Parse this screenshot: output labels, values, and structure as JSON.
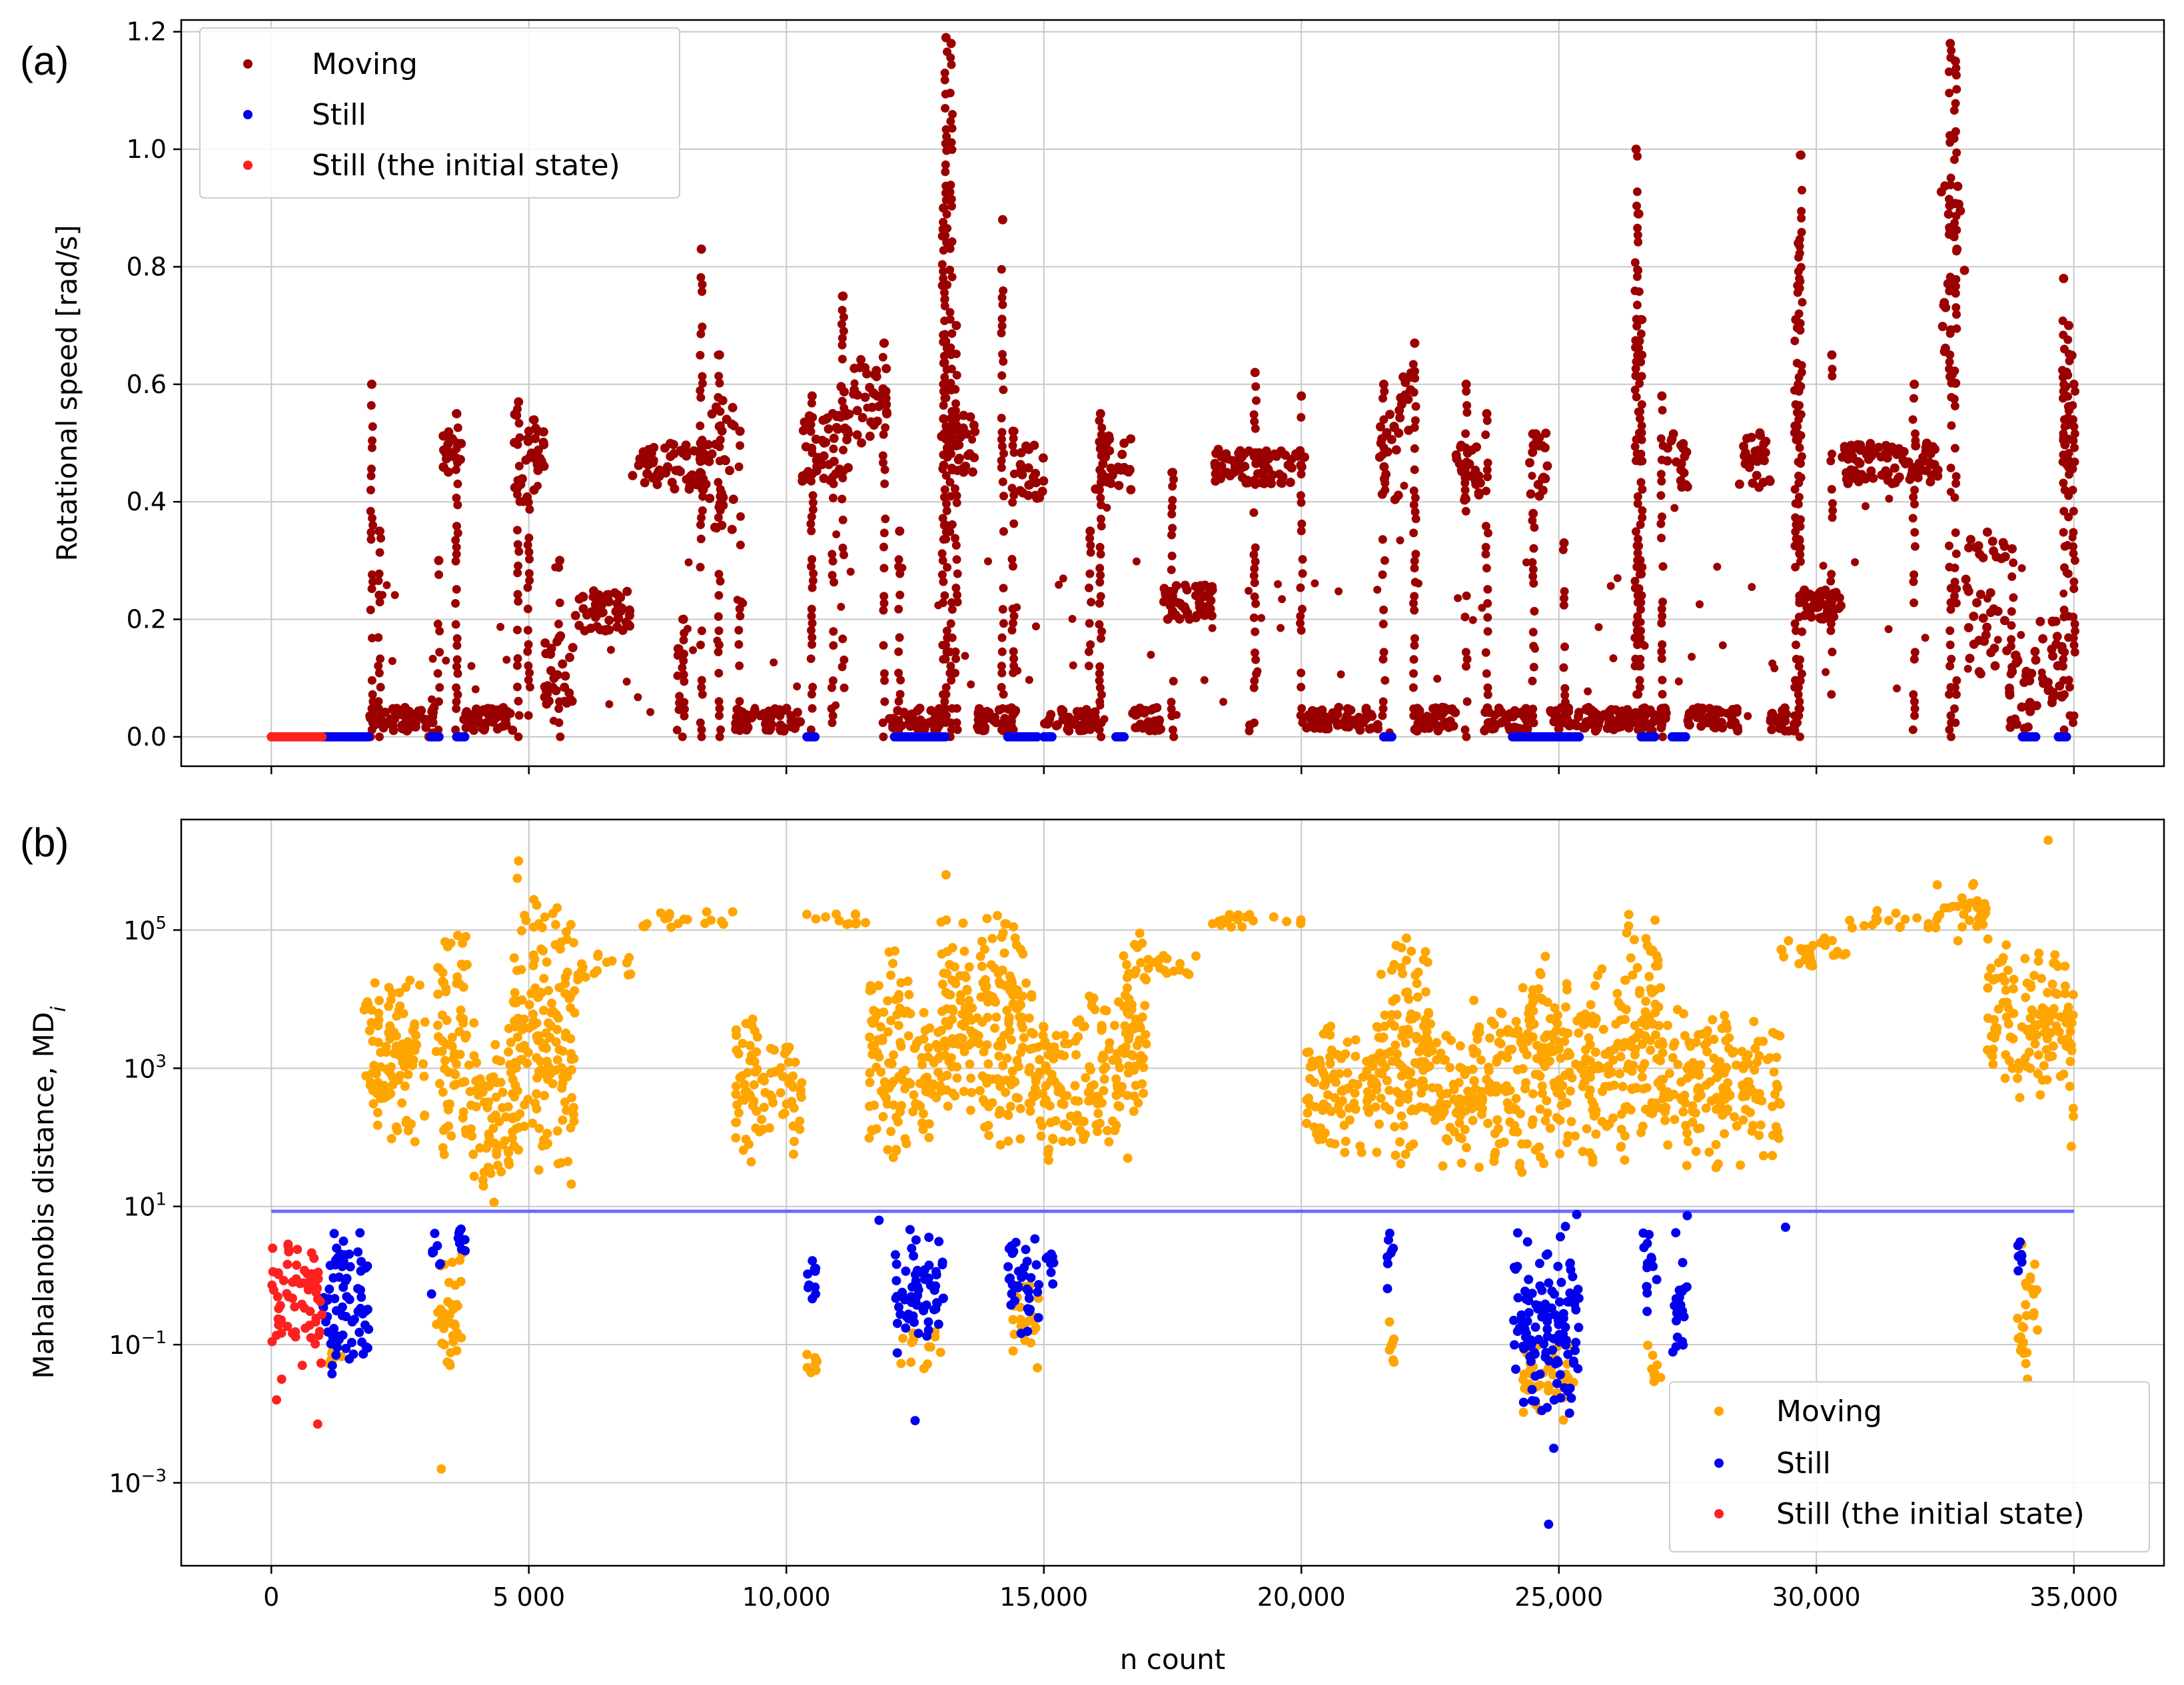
{
  "xlabel": "n count",
  "x_tick_labels": [
    "0",
    "5 000",
    "10,000",
    "15,000",
    "20,000",
    "25,000",
    "30,000",
    "35,000"
  ],
  "chart_data": [
    {
      "panel_label": "(a)",
      "type": "scatter",
      "ylabel": "Rotational speed [rad/s]",
      "xlabel": "",
      "xlim": [
        -1750,
        36750
      ],
      "ylim": [
        -0.05,
        1.22
      ],
      "y_scale": "linear",
      "yticks": [
        0.0,
        0.2,
        0.4,
        0.6,
        0.8,
        1.0,
        1.2
      ],
      "ytick_labels": [
        "0.0",
        "0.2",
        "0.4",
        "0.6",
        "0.8",
        "1.0",
        "1.2"
      ],
      "grid": true,
      "legend": {
        "position": "top-left",
        "entries": [
          "Moving",
          "Still",
          "Still (the initial state)"
        ]
      },
      "series": [
        {
          "name": "Moving",
          "color": "#9b0000",
          "bands": [
            [
              1900,
              3000,
              0.01,
              0.05
            ],
            [
              3000,
              3200,
              0.0,
              0.05
            ],
            [
              3300,
              3700,
              0.45,
              0.52
            ],
            [
              3700,
              4000,
              0.01,
              0.05
            ],
            [
              4000,
              4700,
              0.01,
              0.05
            ],
            [
              4700,
              5300,
              0.4,
              0.55
            ],
            [
              5300,
              5900,
              0.05,
              0.18
            ],
            [
              5900,
              7000,
              0.18,
              0.25
            ],
            [
              7000,
              8500,
              0.42,
              0.5
            ],
            [
              8500,
              9000,
              0.35,
              0.6
            ],
            [
              9000,
              10300,
              0.01,
              0.05
            ],
            [
              10300,
              11000,
              0.43,
              0.55
            ],
            [
              11000,
              11300,
              0.45,
              0.6
            ],
            [
              11300,
              12000,
              0.5,
              0.65
            ],
            [
              12000,
              13000,
              0.01,
              0.05
            ],
            [
              13000,
              13700,
              0.45,
              0.55
            ],
            [
              13700,
              14500,
              0.01,
              0.05
            ],
            [
              14500,
              15000,
              0.4,
              0.5
            ],
            [
              15000,
              16000,
              0.01,
              0.05
            ],
            [
              16000,
              16700,
              0.42,
              0.52
            ],
            [
              16700,
              17300,
              0.01,
              0.05
            ],
            [
              17300,
              18300,
              0.2,
              0.26
            ],
            [
              18300,
              20100,
              0.43,
              0.49
            ],
            [
              20100,
              21500,
              0.01,
              0.05
            ],
            [
              21500,
              21900,
              0.4,
              0.55
            ],
            [
              21900,
              22200,
              0.5,
              0.62
            ],
            [
              22200,
              23000,
              0.01,
              0.05
            ],
            [
              23000,
              23500,
              0.4,
              0.5
            ],
            [
              23500,
              24400,
              0.01,
              0.05
            ],
            [
              24400,
              24800,
              0.4,
              0.52
            ],
            [
              24800,
              26300,
              0.01,
              0.05
            ],
            [
              26300,
              27100,
              0.01,
              0.05
            ],
            [
              27100,
              27500,
              0.42,
              0.52
            ],
            [
              27500,
              28500,
              0.01,
              0.05
            ],
            [
              28500,
              29100,
              0.42,
              0.52
            ],
            [
              29100,
              29600,
              0.01,
              0.05
            ],
            [
              29600,
              30500,
              0.2,
              0.25
            ],
            [
              30500,
              32400,
              0.43,
              0.5
            ],
            [
              32400,
              32900,
              0.6,
              0.95
            ],
            [
              32900,
              33700,
              0.1,
              0.35
            ],
            [
              33700,
              34300,
              0.01,
              0.15
            ],
            [
              34300,
              34800,
              0.05,
              0.2
            ],
            [
              34800,
              35000,
              0.45,
              0.65
            ]
          ],
          "spikes": [
            [
              1950,
              0.6
            ],
            [
              2100,
              0.35
            ],
            [
              3250,
              0.3
            ],
            [
              3600,
              0.55
            ],
            [
              4800,
              0.57
            ],
            [
              5000,
              0.52
            ],
            [
              5600,
              0.3
            ],
            [
              8350,
              0.83
            ],
            [
              8000,
              0.2
            ],
            [
              7900,
              0.15
            ],
            [
              8700,
              0.65
            ],
            [
              9100,
              0.52
            ],
            [
              10500,
              0.58
            ],
            [
              10900,
              0.55
            ],
            [
              11100,
              0.75
            ],
            [
              11900,
              0.67
            ],
            [
              12200,
              0.35
            ],
            [
              13100,
              1.19
            ],
            [
              13200,
              1.18
            ],
            [
              13050,
              0.9
            ],
            [
              13300,
              0.7
            ],
            [
              14200,
              0.88
            ],
            [
              14400,
              0.52
            ],
            [
              15900,
              0.35
            ],
            [
              16100,
              0.55
            ],
            [
              17500,
              0.45
            ],
            [
              19100,
              0.62
            ],
            [
              19000,
              0.02
            ],
            [
              20000,
              0.58
            ],
            [
              21600,
              0.6
            ],
            [
              22200,
              0.67
            ],
            [
              23200,
              0.6
            ],
            [
              23600,
              0.55
            ],
            [
              24500,
              0.38
            ],
            [
              25100,
              0.33
            ],
            [
              26500,
              1.0
            ],
            [
              26550,
              0.89
            ],
            [
              26600,
              0.71
            ],
            [
              27000,
              0.58
            ],
            [
              29700,
              0.99
            ],
            [
              29650,
              0.84
            ],
            [
              29600,
              0.71
            ],
            [
              30300,
              0.65
            ],
            [
              31900,
              0.6
            ],
            [
              32600,
              1.18
            ],
            [
              32700,
              1.15
            ],
            [
              33800,
              0.32
            ],
            [
              34800,
              0.78
            ],
            [
              34900,
              0.7
            ],
            [
              35000,
              0.6
            ]
          ]
        },
        {
          "name": "Still",
          "color": "#0000ee",
          "ranges": [
            [
              1000,
              1900
            ],
            [
              3100,
              3300
            ],
            [
              3600,
              3800
            ],
            [
              10400,
              10600
            ],
            [
              12100,
              13100
            ],
            [
              14300,
              14900
            ],
            [
              15000,
              15200
            ],
            [
              16400,
              16600
            ],
            [
              21600,
              21800
            ],
            [
              24100,
              25400
            ],
            [
              26600,
              26900
            ],
            [
              27200,
              27500
            ],
            [
              34000,
              34300
            ],
            [
              34700,
              34900
            ]
          ],
          "value": 0.0
        },
        {
          "name": "Still (the initial state)",
          "color": "#ff2020",
          "ranges": [
            [
              0,
              1000
            ]
          ],
          "value": 0.0
        }
      ]
    },
    {
      "panel_label": "(b)",
      "type": "scatter",
      "ylabel": "Mahalanobis distance, MD",
      "ylabel_subscript": "i",
      "xlabel": "n count",
      "xlim": [
        -1750,
        36750
      ],
      "y_scale": "log",
      "ylim_log10": [
        -4.2,
        6.6
      ],
      "yticks_log10": [
        -3,
        -1,
        1,
        3,
        5
      ],
      "ytick_bases": [
        "10",
        "10",
        "10",
        "10",
        "10"
      ],
      "ytick_exponents": [
        "−3",
        "−1",
        "1",
        "3",
        "5"
      ],
      "threshold": 8.5,
      "threshold_color": "#6a6aff",
      "grid": true,
      "legend": {
        "position": "bottom-right",
        "entries": [
          "Moving",
          "Still",
          "Still (the initial state)"
        ]
      },
      "series": [
        {
          "name": "Moving",
          "color": "#ffa500",
          "bands_log10": [
            [
              1800,
              3000,
              1.5,
              4.5
            ],
            [
              3200,
              3800,
              1.5,
              5.2
            ],
            [
              3800,
              4700,
              1.0,
              3.8
            ],
            [
              4700,
              5900,
              1.2,
              5.8
            ],
            [
              5900,
              7000,
              4.2,
              4.7
            ],
            [
              7000,
              9000,
              5.0,
              5.3
            ],
            [
              9000,
              10300,
              1.5,
              3.8
            ],
            [
              10300,
              11600,
              5.0,
              5.3
            ],
            [
              11600,
              12400,
              1.5,
              5.0
            ],
            [
              12400,
              13000,
              1.5,
              4.0
            ],
            [
              13000,
              14000,
              1.8,
              5.5
            ],
            [
              14000,
              14800,
              1.5,
              5.5
            ],
            [
              14800,
              15600,
              1.5,
              4.0
            ],
            [
              15600,
              16500,
              1.5,
              4.2
            ],
            [
              16500,
              17000,
              1.5,
              5.5
            ],
            [
              17000,
              18200,
              4.3,
              4.7
            ],
            [
              18200,
              20100,
              5.0,
              5.3
            ],
            [
              20100,
              21500,
              1.5,
              3.8
            ],
            [
              21500,
              22500,
              1.5,
              5.3
            ],
            [
              22500,
              23300,
              1.5,
              3.8
            ],
            [
              23300,
              24300,
              1.3,
              4.2
            ],
            [
              24300,
              25000,
              1.5,
              5.0
            ],
            [
              25000,
              26300,
              1.5,
              4.5
            ],
            [
              26300,
              27000,
              1.5,
              5.5
            ],
            [
              27000,
              28500,
              1.5,
              4.0
            ],
            [
              28500,
              29300,
              1.5,
              3.8
            ],
            [
              29300,
              30600,
              4.3,
              5.0
            ],
            [
              30600,
              32300,
              5.0,
              5.3
            ],
            [
              32300,
              33300,
              4.8,
              5.8
            ],
            [
              33300,
              34900,
              2.5,
              5.0
            ],
            [
              34900,
              35000,
              1.5,
              5.5
            ],
            [
              3200,
              3600,
              -1.5,
              0.5
            ],
            [
              3500,
              3700,
              -1.3,
              0.5
            ],
            [
              10400,
              10600,
              -1.5,
              -1.0
            ],
            [
              12200,
              13000,
              -1.4,
              -0.8
            ],
            [
              14400,
              14900,
              -1.5,
              0.0
            ],
            [
              21700,
              21800,
              -1.5,
              -0.5
            ],
            [
              24300,
              25300,
              -2.2,
              -0.8
            ],
            [
              26700,
              27000,
              -1.8,
              -0.8
            ],
            [
              33900,
              34300,
              -1.5,
              0.5
            ],
            [
              1100,
              1400,
              -1.3,
              -1.0
            ]
          ],
          "outliers_log10": [
            [
              3300,
              -2.8
            ],
            [
              4800,
              6.0
            ],
            [
              13100,
              5.8
            ],
            [
              21800,
              4.5
            ],
            [
              34500,
              6.3
            ],
            [
              34100,
              -1.5
            ]
          ]
        },
        {
          "name": "Still",
          "color": "#0000ee",
          "bands_log10": [
            [
              1000,
              1900,
              -1.7,
              0.9
            ],
            [
              3100,
              3300,
              -0.4,
              0.9
            ],
            [
              3600,
              3800,
              0.2,
              0.9
            ],
            [
              10400,
              10600,
              -0.8,
              0.9
            ],
            [
              12100,
              13100,
              -1.3,
              0.8
            ],
            [
              14300,
              14900,
              -1.0,
              0.9
            ],
            [
              15000,
              15200,
              -0.3,
              0.6
            ],
            [
              21600,
              21800,
              -0.3,
              0.8
            ],
            [
              24100,
              25400,
              -2.2,
              0.9
            ],
            [
              26600,
              26900,
              -0.6,
              0.9
            ],
            [
              27200,
              27500,
              -1.4,
              0.9
            ],
            [
              33900,
              34000,
              -0.2,
              0.6
            ]
          ],
          "outliers_log10": [
            [
              24800,
              -3.6
            ],
            [
              24900,
              -2.5
            ],
            [
              29400,
              0.7
            ],
            [
              12500,
              -2.1
            ],
            [
              11800,
              0.8
            ]
          ]
        },
        {
          "name": "Still (the initial state)",
          "color": "#ff2020",
          "bands_log10": [
            [
              0,
              1000,
              -1.4,
              0.8
            ]
          ],
          "outliers_log10": [
            [
              100,
              -1.8
            ],
            [
              900,
              -2.15
            ],
            [
              200,
              -1.5
            ],
            [
              600,
              -1.3
            ]
          ]
        }
      ]
    }
  ]
}
